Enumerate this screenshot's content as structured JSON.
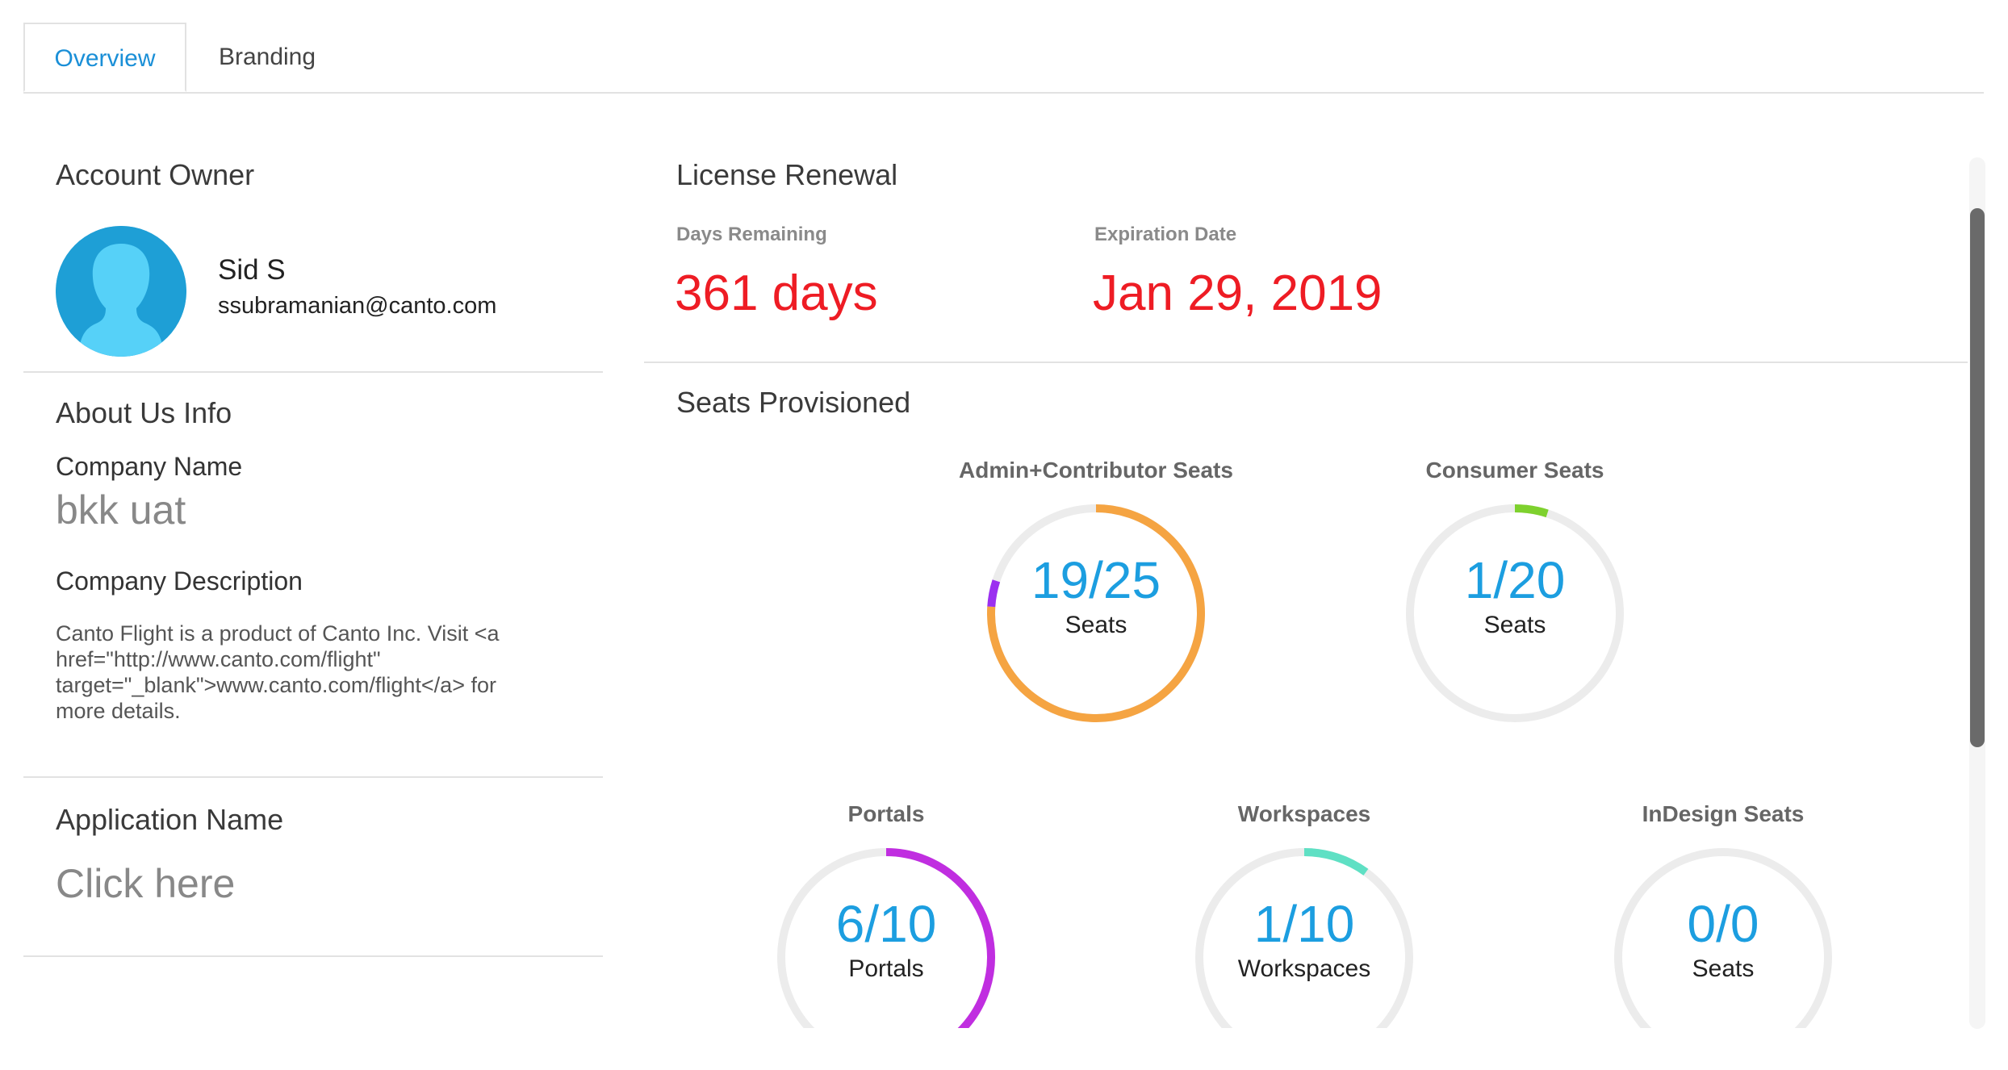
{
  "tabs": [
    {
      "label": "Overview"
    },
    {
      "label": "Branding"
    }
  ],
  "account_owner": {
    "title": "Account Owner",
    "name": "Sid S",
    "email": "ssubramanian@canto.com"
  },
  "about": {
    "title": "About Us Info",
    "company_name_label": "Company Name",
    "company_name": "bkk uat",
    "company_description_label": "Company Description",
    "company_description": "Canto Flight is a product of Canto Inc. Visit <a href=\"http://www.canto.com/flight\" target=\"_blank\">www.canto.com/flight</a> for more details."
  },
  "application": {
    "title": "Application Name",
    "value": "Click here"
  },
  "license": {
    "title": "License Renewal",
    "days_label": "Days Remaining",
    "days_value": "361 days",
    "expiration_label": "Expiration Date",
    "expiration_value": "Jan 29, 2019"
  },
  "seats": {
    "title": "Seats Provisioned",
    "gauges": [
      {
        "title": "Admin+Contributor Seats",
        "value": "19/25",
        "unit": "Seats",
        "used": 19,
        "total": 25,
        "color": "#f5a442",
        "secondary": {
          "fraction": 0.04,
          "color": "#9b30f0"
        }
      },
      {
        "title": "Consumer Seats",
        "value": "1/20",
        "unit": "Seats",
        "used": 1,
        "total": 20,
        "color": "#7ed12e"
      },
      {
        "title": "Portals",
        "value": "6/10",
        "unit": "Portals",
        "used": 6,
        "total": 10,
        "color": "#c02ee0"
      },
      {
        "title": "Workspaces",
        "value": "1/10",
        "unit": "Workspaces",
        "used": 1,
        "total": 10,
        "color": "#5fe0c4"
      },
      {
        "title": "InDesign Seats",
        "value": "0/0",
        "unit": "Seats",
        "used": 0,
        "total": 0,
        "color": "#1c9ee0"
      }
    ]
  }
}
